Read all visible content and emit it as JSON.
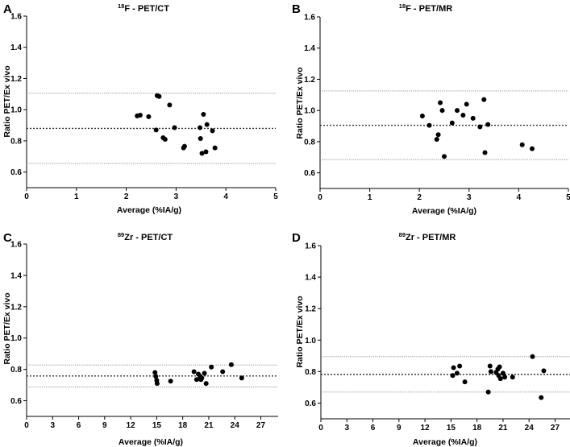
{
  "chart_data": [
    {
      "type": "scatter",
      "panel": "A",
      "title_sup": "18",
      "title_main": "F - PET/CT",
      "xlabel": "Average (%IA/g)",
      "ylabel": "Ratio PET/Ex vivo",
      "xlim": [
        0,
        5
      ],
      "ylim": [
        0.5,
        1.6
      ],
      "xticks": [
        0,
        1,
        2,
        3,
        4,
        5
      ],
      "yticks": [
        0.6,
        0.8,
        1.0,
        1.2,
        1.4,
        1.6
      ],
      "ytick_labels": [
        "0.6",
        "0.8",
        "1.0",
        "1.2",
        "1.4",
        "1.6"
      ],
      "mean": 0.88,
      "upper_limit": 1.105,
      "lower_limit": 0.655,
      "points": [
        [
          2.22,
          0.96
        ],
        [
          2.28,
          0.965
        ],
        [
          2.45,
          0.955
        ],
        [
          2.6,
          0.87
        ],
        [
          2.62,
          1.09
        ],
        [
          2.66,
          1.085
        ],
        [
          2.74,
          0.82
        ],
        [
          2.78,
          0.81
        ],
        [
          2.87,
          1.03
        ],
        [
          2.97,
          0.885
        ],
        [
          3.15,
          0.755
        ],
        [
          3.17,
          0.765
        ],
        [
          3.48,
          0.885
        ],
        [
          3.49,
          0.815
        ],
        [
          3.52,
          0.72
        ],
        [
          3.55,
          0.97
        ],
        [
          3.6,
          0.73
        ],
        [
          3.62,
          0.905
        ],
        [
          3.73,
          0.865
        ],
        [
          3.78,
          0.755
        ]
      ]
    },
    {
      "type": "scatter",
      "panel": "B",
      "title_sup": "18",
      "title_main": "F - PET/MR",
      "xlabel": "Average (%IA/g)",
      "ylabel": "Ratio PET/Ex vivo",
      "xlim": [
        0,
        5
      ],
      "ylim": [
        0.5,
        1.6
      ],
      "xticks": [
        0,
        1,
        2,
        3,
        4,
        5
      ],
      "yticks": [
        0.6,
        0.8,
        1.0,
        1.2,
        1.4,
        1.6
      ],
      "ytick_labels": [
        "0.6",
        "0.8",
        "1.0",
        "1.2",
        "1.4",
        "1.6"
      ],
      "mean": 0.905,
      "upper_limit": 1.125,
      "lower_limit": 0.685,
      "points": [
        [
          2.06,
          0.965
        ],
        [
          2.2,
          0.905
        ],
        [
          2.35,
          0.815
        ],
        [
          2.38,
          0.845
        ],
        [
          2.42,
          1.05
        ],
        [
          2.46,
          1.0
        ],
        [
          2.5,
          0.705
        ],
        [
          2.66,
          0.92
        ],
        [
          2.76,
          1.0
        ],
        [
          2.88,
          0.97
        ],
        [
          2.95,
          1.04
        ],
        [
          3.08,
          0.95
        ],
        [
          3.22,
          0.895
        ],
        [
          3.3,
          1.07
        ],
        [
          3.32,
          0.73
        ],
        [
          3.38,
          0.91
        ],
        [
          4.07,
          0.78
        ],
        [
          4.27,
          0.755
        ]
      ]
    },
    {
      "type": "scatter",
      "panel": "C",
      "title_sup": "89",
      "title_main": "Zr - PET/CT",
      "xlabel": "Average (%IA/g)",
      "ylabel": "Ratio PET/Ex vivo",
      "xlim": [
        0,
        29
      ],
      "ylim": [
        0.5,
        1.6
      ],
      "xticks": [
        0,
        3,
        6,
        9,
        12,
        15,
        18,
        21,
        24,
        27
      ],
      "yticks": [
        0.6,
        0.8,
        1.0,
        1.2,
        1.4,
        1.6
      ],
      "ytick_labels": [
        "0.6",
        "0.8",
        "1.0",
        "1.2",
        "1.4",
        "1.6"
      ],
      "mean": 0.758,
      "upper_limit": 0.828,
      "lower_limit": 0.688,
      "points": [
        [
          14.8,
          0.78
        ],
        [
          14.9,
          0.755
        ],
        [
          15.0,
          0.73
        ],
        [
          15.05,
          0.71
        ],
        [
          16.6,
          0.725
        ],
        [
          19.3,
          0.785
        ],
        [
          19.6,
          0.735
        ],
        [
          19.8,
          0.77
        ],
        [
          20.0,
          0.755
        ],
        [
          20.1,
          0.735
        ],
        [
          20.2,
          0.745
        ],
        [
          20.5,
          0.775
        ],
        [
          20.7,
          0.71
        ],
        [
          21.3,
          0.815
        ],
        [
          22.6,
          0.785
        ],
        [
          23.6,
          0.83
        ],
        [
          24.8,
          0.745
        ]
      ]
    },
    {
      "type": "scatter",
      "panel": "D",
      "title_sup": "89",
      "title_main": "Zr - PET/MR",
      "xlabel": "Average (%IA/g)",
      "ylabel": "Ratio PET/Ex vivo",
      "xlim": [
        0,
        29
      ],
      "ylim": [
        0.5,
        1.6
      ],
      "xticks": [
        0,
        3,
        6,
        9,
        12,
        15,
        18,
        21,
        24,
        27
      ],
      "yticks": [
        0.6,
        0.8,
        1.0,
        1.2,
        1.4,
        1.6
      ],
      "ytick_labels": [
        "0.6",
        "0.8",
        "1.0",
        "1.2",
        "1.4",
        "1.6"
      ],
      "mean": 0.782,
      "upper_limit": 0.895,
      "lower_limit": 0.67,
      "points": [
        [
          15.2,
          0.775
        ],
        [
          15.3,
          0.825
        ],
        [
          15.7,
          0.79
        ],
        [
          16.0,
          0.835
        ],
        [
          16.6,
          0.735
        ],
        [
          19.3,
          0.67
        ],
        [
          19.5,
          0.835
        ],
        [
          19.6,
          0.8
        ],
        [
          20.2,
          0.795
        ],
        [
          20.4,
          0.815
        ],
        [
          20.5,
          0.775
        ],
        [
          20.6,
          0.83
        ],
        [
          20.7,
          0.755
        ],
        [
          21.0,
          0.79
        ],
        [
          21.2,
          0.765
        ],
        [
          22.1,
          0.765
        ],
        [
          24.4,
          0.895
        ],
        [
          25.4,
          0.635
        ],
        [
          25.7,
          0.805
        ]
      ]
    }
  ]
}
